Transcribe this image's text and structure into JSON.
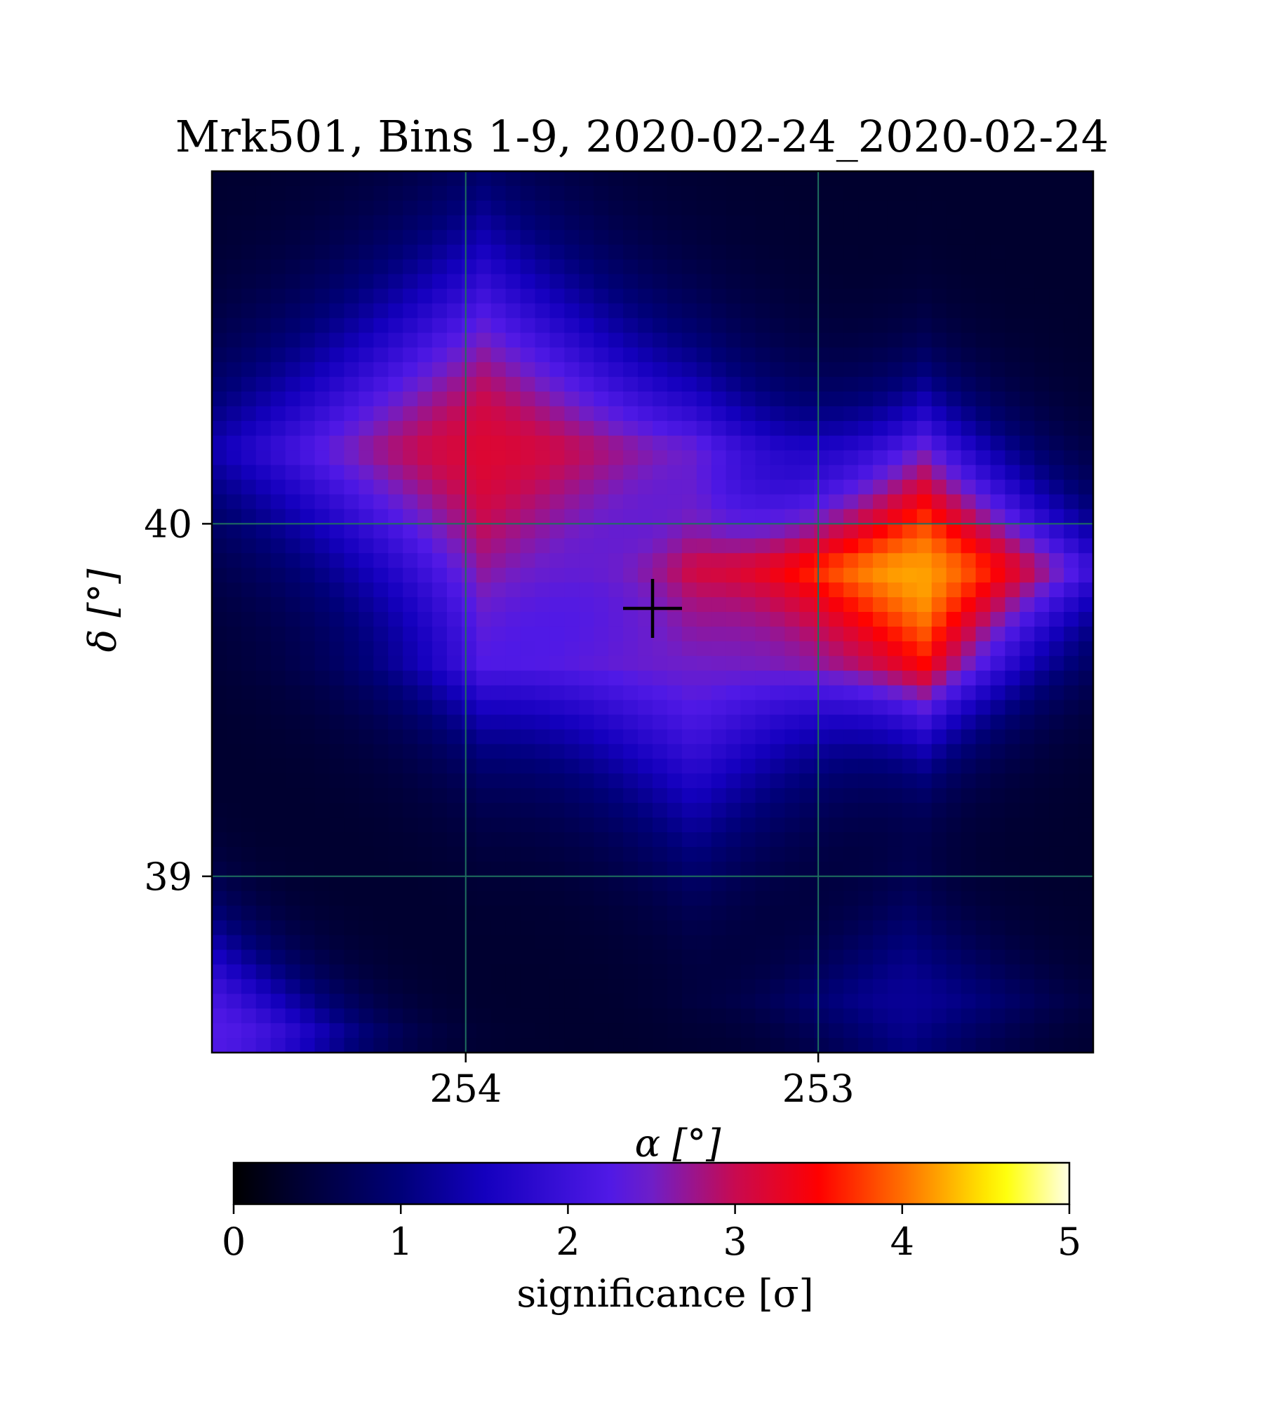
{
  "chart_data": {
    "type": "heatmap",
    "title": "Mrk501, Bins 1-9, 2020-02-24_2020-02-24",
    "xlabel": "α [°]",
    "ylabel": "δ [°]",
    "x_direction": "decreasing to the right",
    "xlim": [
      254.72,
      252.22
    ],
    "ylim": [
      38.5,
      41.0
    ],
    "x_ticks": [
      254,
      253
    ],
    "x_tick_labels": [
      "254",
      "253"
    ],
    "y_ticks": [
      40,
      39
    ],
    "y_tick_labels": [
      "40",
      "39"
    ],
    "grid": true,
    "grid_color": "#1f6f5f",
    "colormap": "gnuplot2",
    "colorbar": {
      "label": "significance [σ]",
      "min": 0,
      "max": 5,
      "ticks": [
        0,
        1,
        2,
        3,
        4,
        5
      ],
      "tick_labels": [
        "0",
        "1",
        "2",
        "3",
        "4",
        "5"
      ],
      "placement": "bottom"
    },
    "marker": {
      "shape": "plus",
      "ra": 253.47,
      "dec": 39.76,
      "color": "#000000"
    },
    "significance_components": [
      {
        "ra": 253.95,
        "dec": 40.21,
        "peak": 2.8,
        "width": 0.58
      },
      {
        "ra": 252.7,
        "dec": 39.87,
        "peak": 3.6,
        "width": 0.4
      },
      {
        "ra": 253.35,
        "dec": 39.6,
        "peak": 1.9,
        "width": 0.5
      },
      {
        "ra": 254.7,
        "dec": 38.55,
        "peak": 1.9,
        "width": 0.3
      },
      {
        "ra": 252.75,
        "dec": 38.65,
        "peak": 0.85,
        "width": 0.3
      }
    ]
  }
}
